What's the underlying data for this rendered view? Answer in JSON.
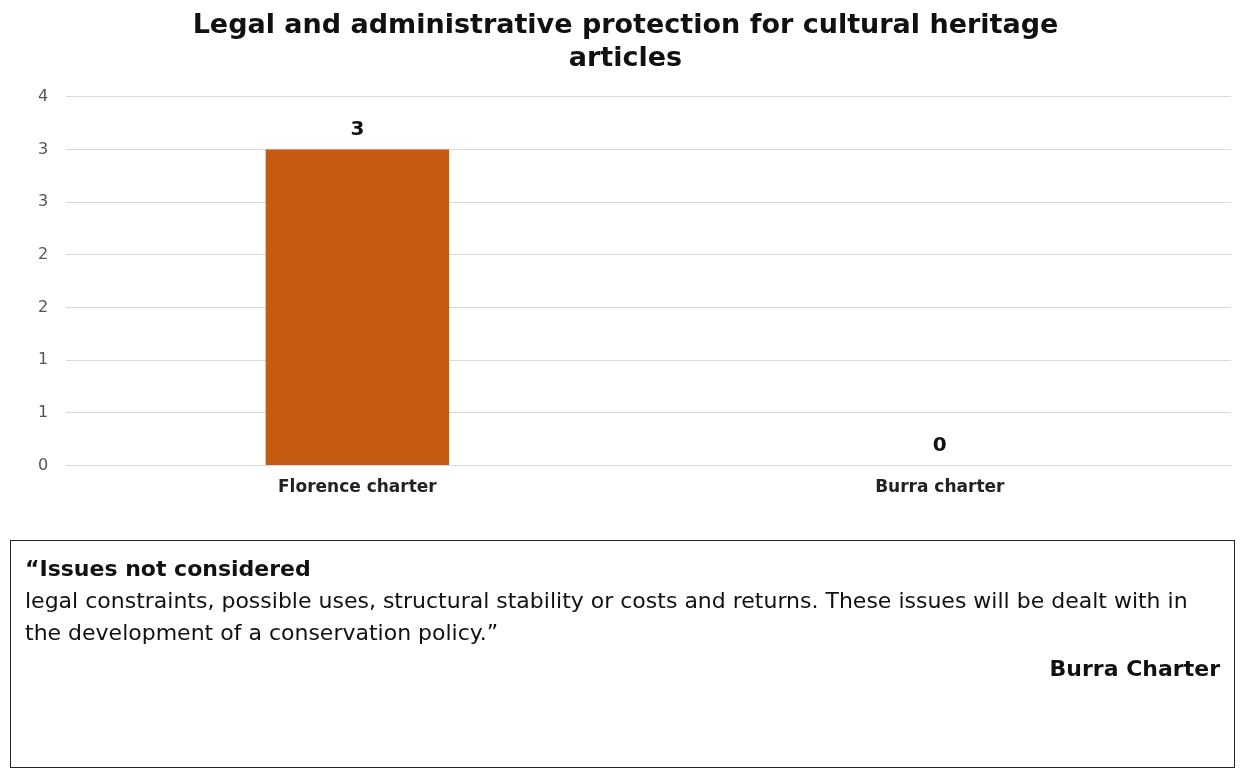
{
  "chart_data": {
    "type": "bar",
    "title": "Legal and administrative protection for cultural heritage articles",
    "categories": [
      "Florence charter",
      "Burra charter"
    ],
    "values": [
      3,
      0
    ],
    "color": "#c55a11",
    "ylim": [
      0,
      3.5
    ],
    "yticks": [
      0,
      {
        "value": 0.5,
        "label": "1"
      },
      1,
      {
        "value": 1.5,
        "label": "2"
      },
      2,
      {
        "value": 2.5,
        "label": "3"
      },
      3,
      {
        "value": 3.5,
        "label": "4"
      }
    ],
    "grid": "y",
    "legend": false,
    "data_labels": true,
    "annotations": [
      "“Issues not considered",
      "legal constraints, possible uses, structural stability or costs and returns. These issues will be dealt with in the development of a conservation policy.”",
      "Burra Charter"
    ]
  }
}
